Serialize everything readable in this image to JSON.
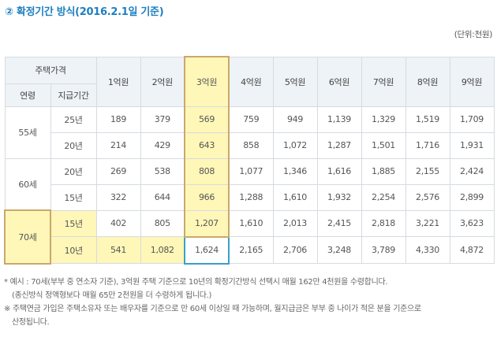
{
  "title": "② 확정기간 방식(2016.2.1일 기준)",
  "unit": "(단위:천원)",
  "table": {
    "h_price": "주택가격",
    "h_age": "연령",
    "h_period": "지급기간",
    "cols": [
      "1억원",
      "2억원",
      "3억원",
      "4억원",
      "5억원",
      "6억원",
      "7억원",
      "8억원",
      "9억원"
    ],
    "rows": [
      {
        "age": "55세",
        "period": "25년",
        "values": [
          "189",
          "379",
          "569",
          "759",
          "949",
          "1,139",
          "1,329",
          "1,519",
          "1,709"
        ]
      },
      {
        "age": "",
        "period": "20년",
        "values": [
          "214",
          "429",
          "643",
          "858",
          "1,072",
          "1,287",
          "1,501",
          "1,716",
          "1,931"
        ]
      },
      {
        "age": "60세",
        "period": "20년",
        "values": [
          "269",
          "538",
          "808",
          "1,077",
          "1,346",
          "1,616",
          "1,885",
          "2,155",
          "2,424"
        ]
      },
      {
        "age": "",
        "period": "15년",
        "values": [
          "322",
          "644",
          "966",
          "1,288",
          "1,610",
          "1,932",
          "2,254",
          "2,576",
          "2,899"
        ]
      },
      {
        "age": "70세",
        "period": "15년",
        "values": [
          "402",
          "805",
          "1,207",
          "1,610",
          "2,013",
          "2,415",
          "2,818",
          "3,221",
          "3,623"
        ]
      },
      {
        "age": "",
        "period": "10년",
        "values": [
          "541",
          "1,082",
          "1,624",
          "2,165",
          "2,706",
          "3,248",
          "3,789",
          "4,330",
          "4,872"
        ]
      }
    ]
  },
  "notes": [
    "* 예시 : 70세(부부 중 연소자 기준), 3억원 주택 기준으로 10년의 확정기간방식 선택시 매월 162만 4천원을 수령합니다.",
    "(종신방식 정액형보다 매월 65만 2천원을 더 수령하게 됩니다.)",
    "※ 주택연금 가입은 주택소유자 또는 배우자를 기준으로 만 60세 이상일 때 가능하며, 월지급금은 부부 중 나이가 적은 분을 기준으로",
    "산정됩니다."
  ]
}
